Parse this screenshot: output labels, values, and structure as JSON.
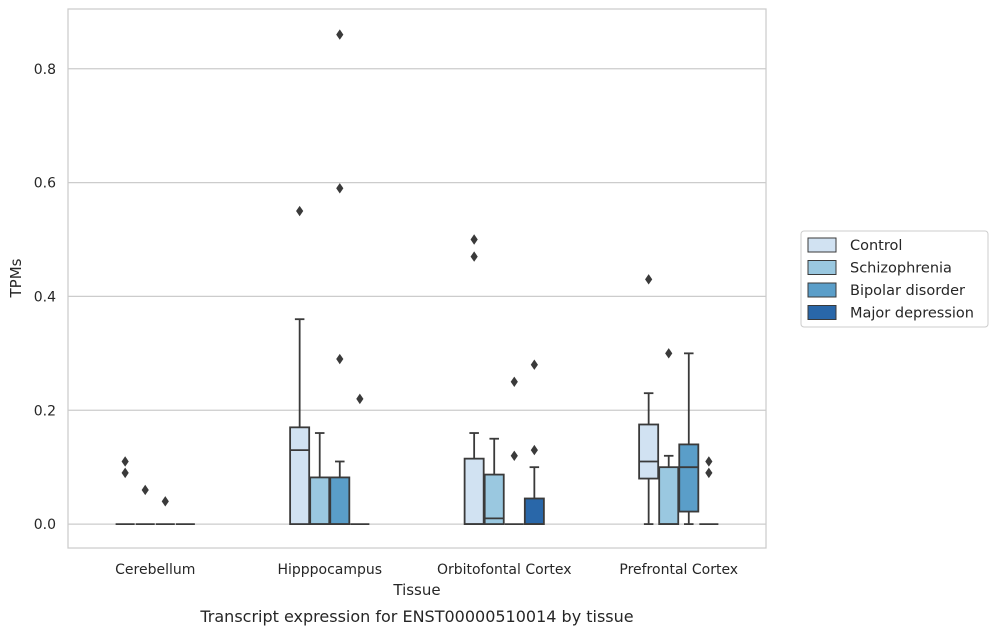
{
  "chart_data": {
    "type": "box",
    "title": "",
    "caption": "Transcript expression for ENST00000510014 by tissue",
    "xlabel": "Tissue",
    "ylabel": "TPMs",
    "ylim": [
      -0.042,
      0.905
    ],
    "yticks": [
      0.0,
      0.2,
      0.4,
      0.6,
      0.8
    ],
    "ytick_labels": [
      "0.0",
      "0.2",
      "0.4",
      "0.6",
      "0.8"
    ],
    "grid": true,
    "legend_position": "right",
    "categories": [
      "Cerebellum",
      "Hipppocampus",
      "Orbitofontal Cortex",
      "Prefrontal Cortex"
    ],
    "series": [
      {
        "name": "Control",
        "color": "#d1e2f2",
        "boxes": [
          {
            "whislo": 0,
            "q1": 0,
            "med": 0,
            "q3": 0,
            "whishi": 0,
            "fliers": [
              0.11,
              0.09
            ]
          },
          {
            "whislo": 0,
            "q1": 0,
            "med": 0.13,
            "q3": 0.17,
            "whishi": 0.36,
            "fliers": [
              0.55
            ]
          },
          {
            "whislo": 0,
            "q1": 0,
            "med": 0,
            "q3": 0.115,
            "whishi": 0.16,
            "fliers": [
              0.5,
              0.47
            ]
          },
          {
            "whislo": 0,
            "q1": 0.08,
            "med": 0.11,
            "q3": 0.175,
            "whishi": 0.23,
            "fliers": [
              0.43
            ]
          }
        ]
      },
      {
        "name": "Schizophrenia",
        "color": "#9ac8e0",
        "boxes": [
          {
            "whislo": 0,
            "q1": 0,
            "med": 0,
            "q3": 0,
            "whishi": 0,
            "fliers": [
              0.06
            ]
          },
          {
            "whislo": 0,
            "q1": 0,
            "med": 0,
            "q3": 0.082,
            "whishi": 0.16,
            "fliers": []
          },
          {
            "whislo": 0,
            "q1": 0,
            "med": 0.01,
            "q3": 0.087,
            "whishi": 0.15,
            "fliers": []
          },
          {
            "whislo": 0,
            "q1": 0,
            "med": 0,
            "q3": 0.1,
            "whishi": 0.12,
            "fliers": [
              0.3
            ]
          }
        ]
      },
      {
        "name": "Bipolar disorder",
        "color": "#5a9ec9",
        "boxes": [
          {
            "whislo": 0,
            "q1": 0,
            "med": 0,
            "q3": 0,
            "whishi": 0,
            "fliers": [
              0.04
            ]
          },
          {
            "whislo": 0,
            "q1": 0,
            "med": 0,
            "q3": 0.082,
            "whishi": 0.11,
            "fliers": [
              0.86,
              0.59,
              0.29
            ]
          },
          {
            "whislo": 0,
            "q1": 0,
            "med": 0,
            "q3": 0,
            "whishi": 0,
            "fliers": [
              0.25,
              0.12
            ]
          },
          {
            "whislo": 0,
            "q1": 0.022,
            "med": 0.1,
            "q3": 0.14,
            "whishi": 0.3,
            "fliers": []
          }
        ]
      },
      {
        "name": "Major depression",
        "color": "#2967a9",
        "boxes": [
          {
            "whislo": 0,
            "q1": 0,
            "med": 0,
            "q3": 0,
            "whishi": 0,
            "fliers": []
          },
          {
            "whislo": 0,
            "q1": 0,
            "med": 0,
            "q3": 0,
            "whishi": 0,
            "fliers": [
              0.22
            ]
          },
          {
            "whislo": 0,
            "q1": 0,
            "med": 0,
            "q3": 0.045,
            "whishi": 0.1,
            "fliers": [
              0.28,
              0.13
            ]
          },
          {
            "whislo": 0,
            "q1": 0,
            "med": 0,
            "q3": 0,
            "whishi": 0,
            "fliers": [
              0.11,
              0.09
            ]
          }
        ]
      }
    ]
  }
}
